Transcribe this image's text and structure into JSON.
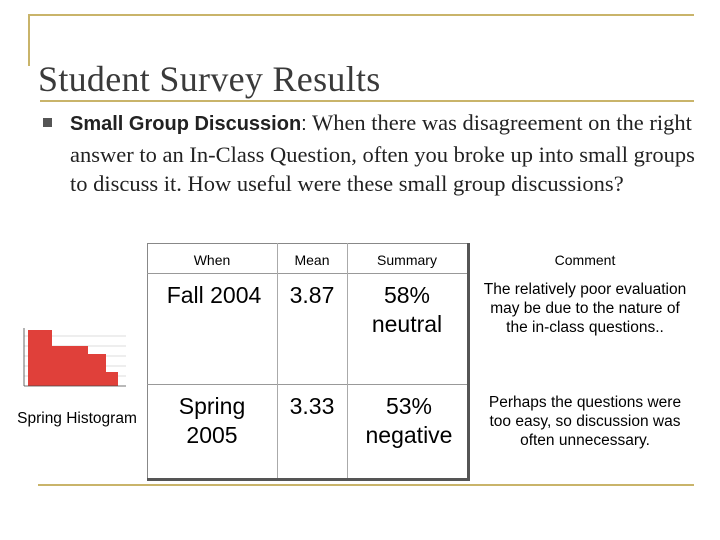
{
  "slide": {
    "title": "Student Survey Results",
    "bullet": {
      "heading": "Small Group Discussion",
      "colon": ":",
      "text": " When there was disagreement on the right answer to an In-Class Question, often you broke up into small groups to discuss it. How useful were these small group discussions?"
    }
  },
  "table": {
    "headers": [
      "When",
      "Mean",
      "Summary",
      "Comment"
    ],
    "rows": [
      {
        "when": "Fall 2004",
        "mean": "3.87",
        "summary_line1": "58%",
        "summary_line2": "neutral",
        "comment": "The relatively poor evaluation may be due to the nature of the in-class questions.."
      },
      {
        "when_line1": "Spring",
        "when_line2": "2005",
        "mean": "3.33",
        "summary_line1": "53%",
        "summary_line2": "negative",
        "comment": "Perhaps the questions were too easy, so discussion was often unnecessary."
      }
    ]
  },
  "histogram": {
    "caption": "Spring Histogram",
    "bar_color": "#e0403a"
  },
  "colors": {
    "accent_rule": "#c9b46a",
    "bullet": "#555555"
  }
}
